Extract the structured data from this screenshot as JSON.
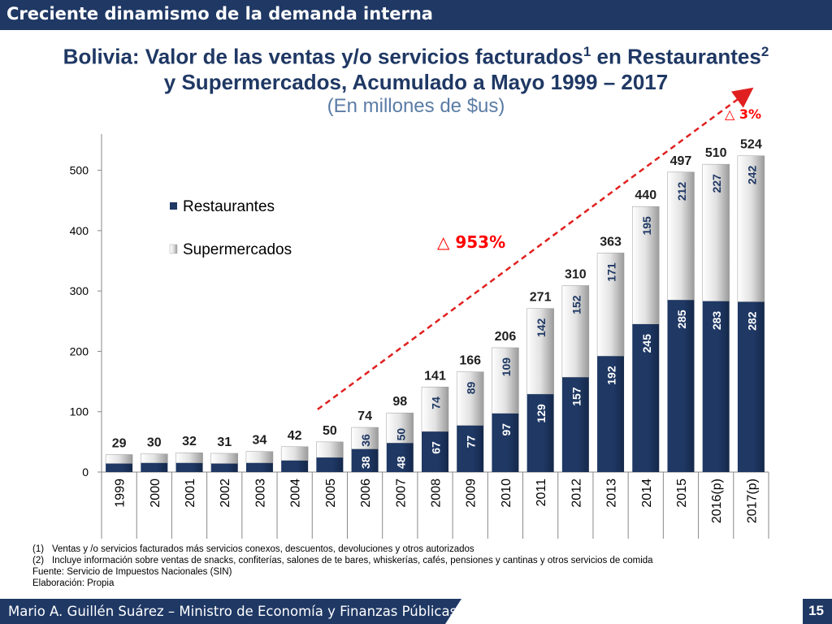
{
  "header": {
    "title": "Creciente dinamismo de la demanda interna"
  },
  "chart_title": {
    "line1_main": "Bolivia: Valor de las ventas y/o servicios facturados",
    "sup1": "1",
    "line1_mid": " en Restaurantes",
    "sup2": "2",
    "line2": "y Supermercados, Acumulado a Mayo 1999 – 2017",
    "subtitle": "(En millones de $us)"
  },
  "chart_data": {
    "type": "bar",
    "stacked": true,
    "categories": [
      "1999",
      "2000",
      "2001",
      "2002",
      "2003",
      "2004",
      "2005",
      "2006",
      "2007",
      "2008",
      "2009",
      "2010",
      "2011",
      "2012",
      "2013",
      "2014",
      "2015",
      "2016(p)",
      "2017(p)"
    ],
    "series": [
      {
        "name": "Restaurantes",
        "color": "#1f3864",
        "values": [
          14,
          15,
          15,
          14,
          15,
          19,
          24,
          38,
          48,
          67,
          77,
          97,
          129,
          157,
          192,
          245,
          285,
          283,
          282
        ],
        "labels": [
          null,
          null,
          null,
          null,
          null,
          null,
          null,
          "38",
          "48",
          "67",
          "77",
          "97",
          "129",
          "157",
          "192",
          "245",
          "285",
          "283",
          "282"
        ]
      },
      {
        "name": "Supermercados",
        "color": "#d0d0d0",
        "values": [
          15,
          15,
          17,
          17,
          19,
          23,
          26,
          36,
          50,
          74,
          89,
          109,
          142,
          152,
          171,
          195,
          212,
          227,
          242
        ],
        "labels": [
          null,
          null,
          null,
          null,
          null,
          null,
          null,
          "36",
          "50",
          "74",
          "89",
          "109",
          "142",
          "152",
          "171",
          "195",
          "212",
          "227",
          "242"
        ]
      }
    ],
    "totals": [
      29,
      30,
      32,
      31,
      34,
      42,
      50,
      74,
      98,
      141,
      166,
      206,
      271,
      310,
      363,
      440,
      497,
      510,
      524
    ],
    "ylim": [
      0,
      560
    ],
    "yticks": [
      0,
      100,
      200,
      300,
      400,
      500
    ],
    "legend_position": "top-left",
    "annotations": [
      {
        "text": "953%",
        "symbol": "△",
        "color": "#ff0000"
      },
      {
        "text": "3%",
        "symbol": "△",
        "color": "#ff0000"
      }
    ],
    "trend_line": {
      "from_category": "2005",
      "to_category": "2017(p)",
      "color": "#e02020",
      "style": "dashed"
    }
  },
  "notes": [
    {
      "key": "(1)",
      "text": "Ventas y /o servicios facturados más servicios conexos, descuentos, devoluciones y otros autorizados"
    },
    {
      "key": "(2)",
      "text": "Incluye información sobre ventas de snacks, confiterías, salones de te bares, whiskerías, cafés, pensiones y cantinas y otros servicios de comida"
    }
  ],
  "source": "Fuente: Servicio de Impuestos Nacionales (SIN)",
  "elaboration": "Elaboración: Propia",
  "footer": {
    "author": "Mario A. Guillén Suárez – Ministro de Economía y Finanzas Públicas",
    "page": "15"
  }
}
